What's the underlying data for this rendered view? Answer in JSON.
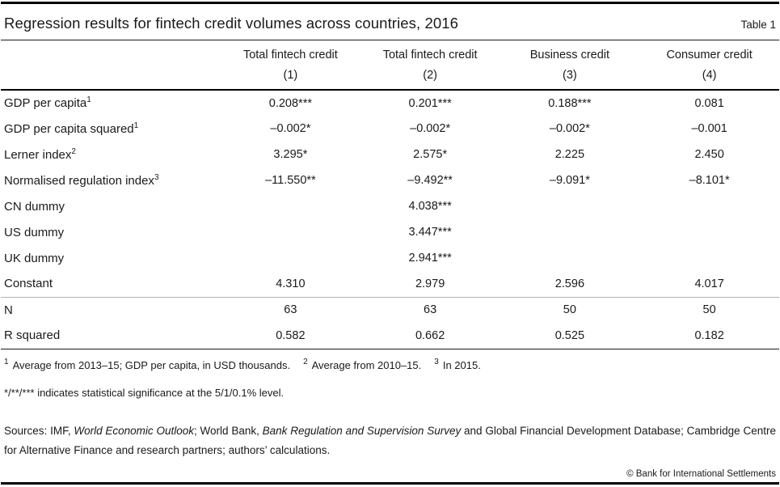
{
  "header": {
    "title": "Regression results for fintech credit volumes across countries, 2016",
    "table_label": "Table 1"
  },
  "chart_data": {
    "type": "table",
    "title": "Regression results for fintech credit volumes across countries, 2016",
    "columns": [
      {
        "name": "Total fintech credit",
        "number": "(1)"
      },
      {
        "name": "Total fintech credit",
        "number": "(2)"
      },
      {
        "name": "Business credit",
        "number": "(3)"
      },
      {
        "name": "Consumer credit",
        "number": "(4)"
      }
    ],
    "rows": [
      {
        "label": "GDP per capita",
        "sup": "1",
        "values": [
          "0.208***",
          "0.201***",
          "0.188***",
          "0.081"
        ]
      },
      {
        "label": "GDP per capita squared",
        "sup": "1",
        "values": [
          "–0.002*",
          "–0.002*",
          "–0.002*",
          "–0.001"
        ]
      },
      {
        "label": "Lerner index",
        "sup": "2",
        "values": [
          "3.295*",
          "2.575*",
          "2.225",
          "2.450"
        ]
      },
      {
        "label": "Normalised regulation index",
        "sup": "3",
        "values": [
          "–11.550**",
          "–9.492**",
          "–9.091*",
          "–8.101*"
        ]
      },
      {
        "label": "CN dummy",
        "sup": "",
        "values": [
          "",
          "4.038***",
          "",
          ""
        ]
      },
      {
        "label": "US dummy",
        "sup": "",
        "values": [
          "",
          "3.447***",
          "",
          ""
        ]
      },
      {
        "label": "UK dummy",
        "sup": "",
        "values": [
          "",
          "2.941***",
          "",
          ""
        ]
      },
      {
        "label": "Constant",
        "sup": "",
        "values": [
          "4.310",
          "2.979",
          "2.596",
          "4.017"
        ]
      }
    ],
    "stats_rows": [
      {
        "label": "N",
        "values": [
          "63",
          "63",
          "50",
          "50"
        ]
      },
      {
        "label": "R squared",
        "values": [
          "0.582",
          "0.662",
          "0.525",
          "0.182"
        ]
      }
    ]
  },
  "footnotes": {
    "markers": [
      {
        "sup": "1",
        "text": "Average from 2013–15; GDP per capita, in USD thousands."
      },
      {
        "sup": "2",
        "text": "Average from 2010–15."
      },
      {
        "sup": "3",
        "text": "In 2015."
      }
    ],
    "significance": "*/**/*** indicates statistical significance at the 5/1/0.1% level.",
    "sources_runs": [
      {
        "text": "Sources: IMF, ",
        "italic": false
      },
      {
        "text": "World Economic Outlook",
        "italic": true
      },
      {
        "text": "; World Bank, ",
        "italic": false
      },
      {
        "text": "Bank Regulation and Supervision Survey",
        "italic": true
      },
      {
        "text": " and Global Financial Development Database; Cambridge Centre for Alternative Finance and research partners; authors’ calculations.",
        "italic": false
      }
    ]
  },
  "footer": {
    "copyright": "© Bank for International Settlements"
  }
}
